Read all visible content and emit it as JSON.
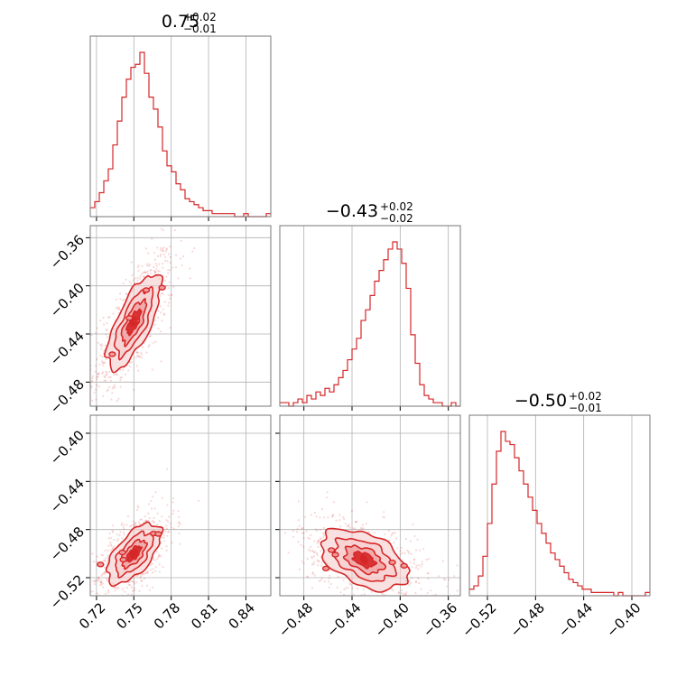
{
  "colors": {
    "accent": "#d62728",
    "fill_light": "#f6c9c9",
    "fill_mid": "#ee9a9a",
    "grid": "#b0b0b0"
  },
  "titles": [
    {
      "value": "0.75",
      "upper": "+0.02",
      "lower": "−0.01"
    },
    {
      "value": "−0.43",
      "upper": "+0.02",
      "lower": "−0.02"
    },
    {
      "value": "−0.50",
      "upper": "+0.02",
      "lower": "−0.01"
    }
  ],
  "chart_data": {
    "type": "corner",
    "parameters": [
      {
        "range": [
          0.715,
          0.86
        ],
        "ticks": [
          0.72,
          0.75,
          0.78,
          0.81,
          0.84
        ],
        "tick_labels": [
          "0.72",
          "0.75",
          "0.78",
          "0.81",
          "0.84"
        ]
      },
      {
        "range": [
          -0.5,
          -0.35
        ],
        "ticks": [
          -0.48,
          -0.44,
          -0.4,
          -0.36
        ],
        "tick_labels": [
          "−0.48",
          "−0.44",
          "−0.40",
          "−0.36"
        ]
      },
      {
        "range": [
          -0.535,
          -0.385
        ],
        "ticks": [
          -0.52,
          -0.48,
          -0.44,
          -0.4
        ],
        "tick_labels": [
          "−0.52",
          "−0.48",
          "−0.44",
          "−0.40"
        ]
      }
    ],
    "histograms": [
      {
        "param": 0,
        "counts": [
          3,
          5,
          8,
          12,
          16,
          24,
          32,
          40,
          46,
          50,
          51,
          55,
          48,
          40,
          36,
          30,
          22,
          17,
          15,
          11,
          9,
          6,
          5,
          4,
          3,
          2,
          2,
          1,
          1,
          1,
          1,
          1,
          0,
          0,
          1,
          0,
          0,
          0,
          0,
          1
        ]
      },
      {
        "param": 1,
        "counts": [
          1,
          1,
          0,
          1,
          2,
          1,
          3,
          2,
          4,
          3,
          5,
          4,
          6,
          8,
          10,
          13,
          16,
          19,
          24,
          27,
          31,
          35,
          38,
          41,
          44,
          46,
          44,
          40,
          33,
          20,
          12,
          6,
          3,
          2,
          1,
          1,
          0,
          0,
          1,
          0
        ]
      },
      {
        "param": 2,
        "counts": [
          2,
          3,
          6,
          12,
          22,
          34,
          44,
          50,
          47,
          46,
          42,
          38,
          34,
          30,
          26,
          22,
          19,
          16,
          13,
          11,
          9,
          7,
          5,
          4,
          3,
          2,
          2,
          1,
          1,
          1,
          1,
          1,
          0,
          1,
          0,
          0,
          0,
          0,
          0,
          1
        ]
      }
    ],
    "pairs": [
      {
        "x_param": 0,
        "y_param": 1,
        "center": [
          0.75,
          -0.43
        ],
        "sd": [
          0.012,
          0.022
        ],
        "rho": 0.72
      },
      {
        "x_param": 0,
        "y_param": 2,
        "center": [
          0.75,
          -0.5
        ],
        "sd": [
          0.012,
          0.014
        ],
        "rho": 0.62
      },
      {
        "x_param": 1,
        "y_param": 2,
        "center": [
          -0.43,
          -0.505
        ],
        "sd": [
          0.02,
          0.014
        ],
        "rho": -0.45
      }
    ]
  }
}
